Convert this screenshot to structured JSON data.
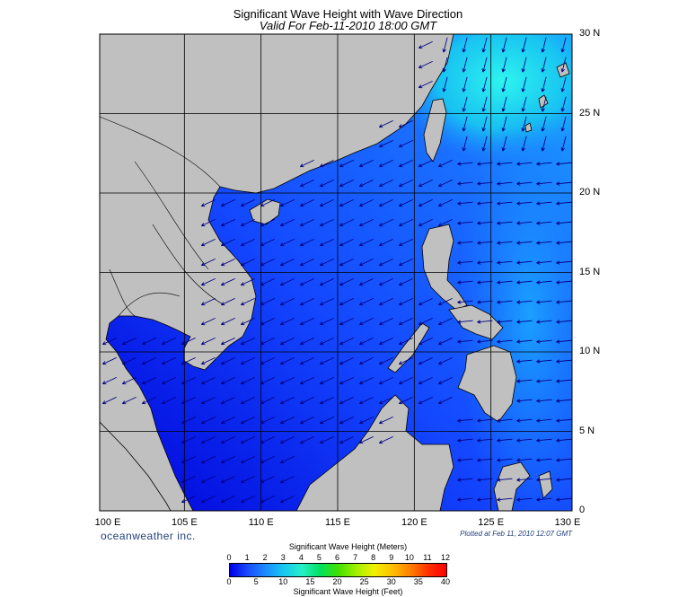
{
  "title": "Significant Wave Height with Wave Direction",
  "subtitle": "Valid For Feb-11-2010 18:00 GMT",
  "brand": "oceanweather inc.",
  "plotted_note": "Plotted at Feb 11, 2010 12:07 GMT",
  "colors": {
    "land": "#c0c0c0",
    "water_low": "#0000e6",
    "water_mid": "#1a4cff",
    "water_high": "#18c8f0",
    "water_peak": "#27f0f0",
    "arrow": "#000080",
    "grid": "#000000"
  },
  "chart_data": {
    "type": "heatmap",
    "title": "Significant Wave Height with Wave Direction",
    "subtitle": "Valid For Feb-11-2010 18:00 GMT",
    "xlim": [
      99,
      130
    ],
    "ylim": [
      0,
      30
    ],
    "x_ticks": [
      {
        "value": 100,
        "label": "100 E"
      },
      {
        "value": 105,
        "label": "105 E"
      },
      {
        "value": 110,
        "label": "110 E"
      },
      {
        "value": 115,
        "label": "115 E"
      },
      {
        "value": 120,
        "label": "120 E"
      },
      {
        "value": 125,
        "label": "125 E"
      },
      {
        "value": 130,
        "label": "130 E"
      }
    ],
    "y_ticks": [
      {
        "value": 0,
        "label": "0"
      },
      {
        "value": 5,
        "label": "5 N"
      },
      {
        "value": 10,
        "label": "10 N"
      },
      {
        "value": 15,
        "label": "15 N"
      },
      {
        "value": 20,
        "label": "20 N"
      },
      {
        "value": 25,
        "label": "25 N"
      },
      {
        "value": 30,
        "label": "30 N"
      }
    ],
    "grid": true,
    "wave_direction_arrows": "mostly from northeast, pointing southwest; southerly near Taiwan and Luzon Strait",
    "colorbar": {
      "title_top": "Significant Wave Height (Meters)",
      "title_bottom": "Significant Wave Height (Feet)",
      "meters": [
        0,
        1,
        2,
        3,
        4,
        5,
        6,
        7,
        8,
        9,
        10,
        11,
        12
      ],
      "feet": [
        0,
        5,
        10,
        15,
        20,
        25,
        30,
        35,
        40
      ],
      "stops": [
        "#0000e6",
        "#1a4cff",
        "#1a8cff",
        "#18c8f0",
        "#27f0c8",
        "#00e060",
        "#40e000",
        "#a0f000",
        "#f0f000",
        "#ffc000",
        "#ff8000",
        "#ff3000",
        "#ff0000"
      ]
    }
  }
}
